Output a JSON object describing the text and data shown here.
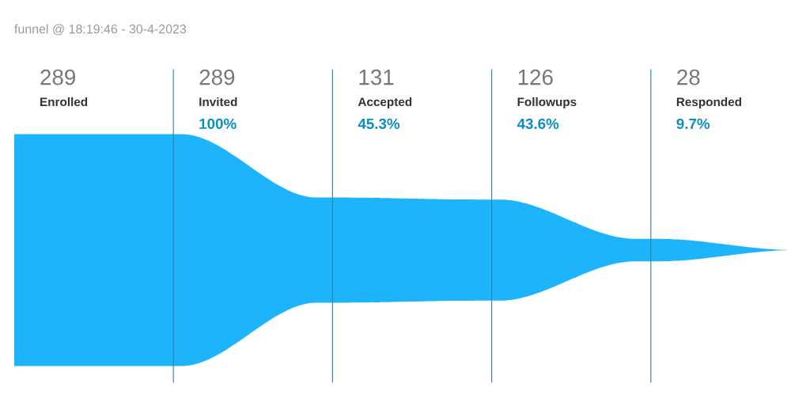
{
  "chart_data": {
    "type": "other",
    "title": "funnel @ 18:19:46 - 30-4-2023",
    "categories": [
      "Enrolled",
      "Invited",
      "Accepted",
      "Followups",
      "Responded"
    ],
    "values": [
      289,
      289,
      131,
      126,
      28
    ],
    "value_labels": [
      "289",
      "289",
      "131",
      "126",
      "28"
    ],
    "annotations": [
      {
        "text": "100%",
        "x": "Invited"
      },
      {
        "text": "45.3%",
        "x": "Accepted"
      },
      {
        "text": "43.6%",
        "x": "Followups"
      },
      {
        "text": "9.7%",
        "x": "Responded"
      }
    ],
    "color": "#1eb4fb"
  }
}
